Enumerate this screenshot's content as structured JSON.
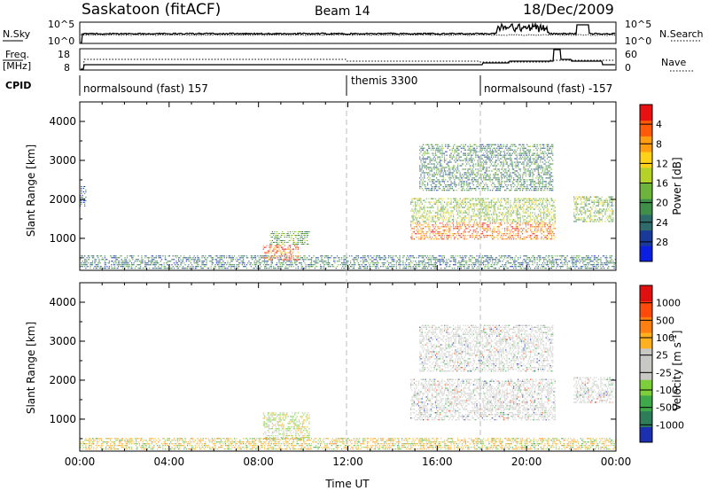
{
  "header": {
    "title": "Saskatoon (fitACF)",
    "beam": "Beam 14",
    "date": "18/Dec/2009"
  },
  "strip1": {
    "left_label": "N.Sky",
    "right_label": "N.Search",
    "left_ticks": [
      "10^5",
      "10^0"
    ],
    "right_ticks": [
      "10^5",
      "10^0"
    ]
  },
  "strip2": {
    "left_label_1": "Freq.",
    "left_label_2": "[MHz]",
    "right_label": "Nave",
    "left_ticks": [
      "18",
      "8"
    ],
    "right_ticks": [
      "60",
      "0"
    ]
  },
  "cpid": {
    "label": "CPID",
    "segments": [
      {
        "label": "normalsound (fast) 157",
        "start_h": 0,
        "end_h": 12
      },
      {
        "label": "themis 3300",
        "start_h": 12,
        "end_h": 18
      },
      {
        "label": "normalsound (fast) -157",
        "start_h": 18,
        "end_h": 24
      }
    ]
  },
  "chart_data": [
    {
      "type": "heatmap",
      "name": "power",
      "ylabel": "Slant Range [km]",
      "y_ticks": [
        "1000",
        "2000",
        "3000",
        "4000"
      ],
      "ylim": [
        180,
        4500
      ],
      "xlim": [
        0,
        24
      ],
      "colorbar": {
        "label": "Power [dB]",
        "ticks": [
          "4",
          "8",
          "12",
          "16",
          "20",
          "24",
          "28"
        ],
        "colors": [
          "#0a1fe0",
          "#1a3a9a",
          "#2e6b6b",
          "#3f8f4a",
          "#6cb43c",
          "#b4d22a",
          "#ffd21a",
          "#ff9c10",
          "#ff5a0a",
          "#e81010"
        ]
      },
      "regions": [
        {
          "x0": 0.0,
          "x1": 24.0,
          "y0": 200,
          "y1": 560,
          "level": 0.25
        },
        {
          "x0": 8.2,
          "x1": 9.8,
          "y0": 420,
          "y1": 800,
          "level": 0.9
        },
        {
          "x0": 8.5,
          "x1": 10.3,
          "y0": 820,
          "y1": 1150,
          "level": 0.4
        },
        {
          "x0": 14.8,
          "x1": 21.3,
          "y0": 950,
          "y1": 1400,
          "level": 0.85
        },
        {
          "x0": 14.8,
          "x1": 21.3,
          "y0": 1400,
          "y1": 2000,
          "level": 0.5
        },
        {
          "x0": 15.2,
          "x1": 21.2,
          "y0": 2200,
          "y1": 3400,
          "level": 0.3
        },
        {
          "x0": 22.1,
          "x1": 23.9,
          "y0": 1400,
          "y1": 2050,
          "level": 0.45
        },
        {
          "x0": 0.0,
          "x1": 0.3,
          "y0": 1800,
          "y1": 2300,
          "level": 0.2
        }
      ]
    },
    {
      "type": "heatmap",
      "name": "velocity",
      "ylabel": "Slant Range [km]",
      "y_ticks": [
        "1000",
        "2000",
        "3000",
        "4000"
      ],
      "ylim": [
        180,
        4500
      ],
      "xlim": [
        0,
        24
      ],
      "x_ticks": [
        "00:00",
        "04:00",
        "08:00",
        "12:00",
        "16:00",
        "20:00",
        "00:00"
      ],
      "xlabel": "Time UT",
      "colorbar": {
        "label": "Velocity [m s",
        "label_sup": "-1",
        "label_tail": "]",
        "ticks": [
          "1000",
          "500",
          "100",
          "25",
          "-25",
          "-100",
          "-500",
          "-1000"
        ],
        "colors": [
          "#1b2fb0",
          "#2e7d5a",
          "#3ea84a",
          "#7ccf3a",
          "#c8c8c4",
          "#c8c8c4",
          "#ffb020",
          "#ff8010",
          "#ff4a0a",
          "#e01010"
        ]
      },
      "regions": [
        {
          "x0": 0.0,
          "x1": 24.0,
          "y0": 200,
          "y1": 500,
          "level": 0.6
        },
        {
          "x0": 8.2,
          "x1": 10.3,
          "y0": 450,
          "y1": 1150,
          "level": 0.35
        },
        {
          "x0": 14.8,
          "x1": 21.3,
          "y0": 950,
          "y1": 2000,
          "level": 0.5
        },
        {
          "x0": 15.2,
          "x1": 21.2,
          "y0": 2200,
          "y1": 3400,
          "level": 0.5
        },
        {
          "x0": 22.1,
          "x1": 23.9,
          "y0": 1400,
          "y1": 2050,
          "level": 0.5
        }
      ]
    }
  ]
}
